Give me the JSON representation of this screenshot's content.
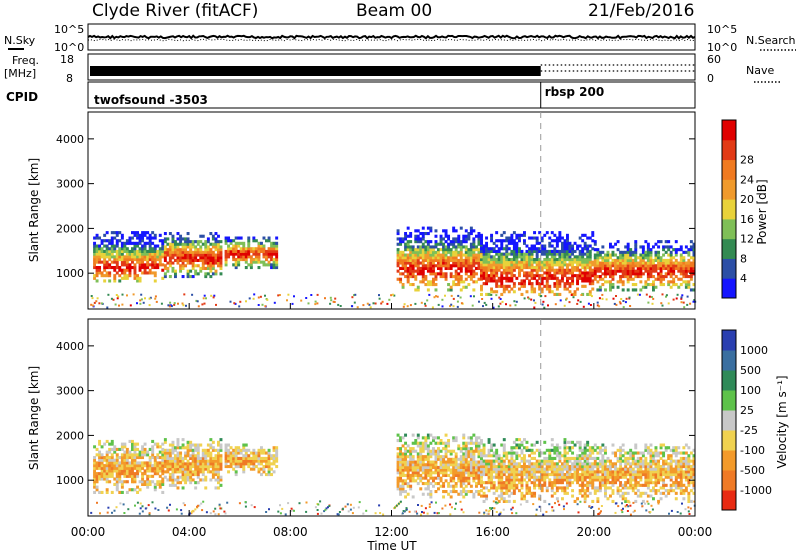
{
  "header": {
    "title": "Clyde River (fitACF)",
    "beam": "Beam 00",
    "date": "21/Feb/2016"
  },
  "top_panels": {
    "nsky_label": "N.Sky",
    "nsearch_label": "N.Search",
    "nsky_ticks": [
      "10^5",
      "10^0"
    ],
    "nsearch_ticks": [
      "10^5",
      "10^0"
    ],
    "freq_label_1": "Freq.",
    "freq_label_2": "[MHz]",
    "freq_ticks": [
      "18",
      "8"
    ],
    "nave_label": "Nave",
    "nave_ticks": [
      "60",
      "0"
    ],
    "cpid_label": "CPID",
    "cpid_1": "twofsound -3503",
    "cpid_2": "rbsp 200"
  },
  "chart_data": [
    {
      "type": "heatmap",
      "panel": "power",
      "xlabel": "",
      "ylabel": "Slant Range [km]",
      "x_range_hours": [
        0,
        24
      ],
      "ylim": [
        200,
        4600
      ],
      "y_ticks": [
        1000,
        2000,
        3000,
        4000
      ],
      "colorbar_label": "Power [dB]",
      "colorbar_ticks": [
        4,
        8,
        12,
        16,
        20,
        24,
        28
      ],
      "colors": [
        "#1515ff",
        "#2c4fa6",
        "#338a52",
        "#7fbf57",
        "#e8d23a",
        "#f09a2c",
        "#f07a20",
        "#e23a16",
        "#e00000"
      ],
      "regions": [
        {
          "t0": 0.2,
          "t1": 3.0,
          "r0": 800,
          "r1": 1900,
          "core": 1100
        },
        {
          "t0": 3.0,
          "t1": 5.2,
          "r0": 900,
          "r1": 1900,
          "core": 1300
        },
        {
          "t0": 5.4,
          "t1": 7.4,
          "r0": 1100,
          "r1": 1800,
          "core": 1400
        },
        {
          "t0": 12.2,
          "t1": 15.5,
          "r0": 600,
          "r1": 2000,
          "core": 1050
        },
        {
          "t0": 15.5,
          "t1": 20.0,
          "r0": 500,
          "r1": 1900,
          "core": 850
        },
        {
          "t0": 20.0,
          "t1": 24.0,
          "r0": 600,
          "r1": 1700,
          "core": 1000
        }
      ]
    },
    {
      "type": "heatmap",
      "panel": "velocity",
      "xlabel": "Time UT",
      "ylabel": "Slant Range [km]",
      "x_range_hours": [
        0,
        24
      ],
      "x_ticks": [
        "00:00",
        "04:00",
        "08:00",
        "12:00",
        "16:00",
        "20:00",
        "00:00"
      ],
      "ylim": [
        200,
        4600
      ],
      "y_ticks": [
        1000,
        2000,
        3000,
        4000
      ],
      "colorbar_label": "Velocity [m s⁻¹]",
      "colorbar_ticks": [
        1000,
        500,
        100,
        25,
        -25,
        -100,
        -500,
        -1000
      ],
      "colors": [
        "#2a3fb0",
        "#3a6fa0",
        "#2f8a58",
        "#5ec24a",
        "#c8c8c8",
        "#f0d250",
        "#f39a2a",
        "#ef7a26",
        "#e82a12"
      ],
      "regions": [
        {
          "t0": 0.2,
          "t1": 3.0,
          "r0": 700,
          "r1": 1900,
          "core": 1200
        },
        {
          "t0": 3.0,
          "t1": 5.2,
          "r0": 800,
          "r1": 1900,
          "core": 1300
        },
        {
          "t0": 5.4,
          "t1": 7.4,
          "r0": 1100,
          "r1": 1800,
          "core": 1400
        },
        {
          "t0": 12.2,
          "t1": 15.5,
          "r0": 600,
          "r1": 2000,
          "core": 1100
        },
        {
          "t0": 15.5,
          "t1": 20.0,
          "r0": 500,
          "r1": 1900,
          "core": 900
        },
        {
          "t0": 20.0,
          "t1": 24.0,
          "r0": 500,
          "r1": 1800,
          "core": 1000
        }
      ]
    }
  ]
}
